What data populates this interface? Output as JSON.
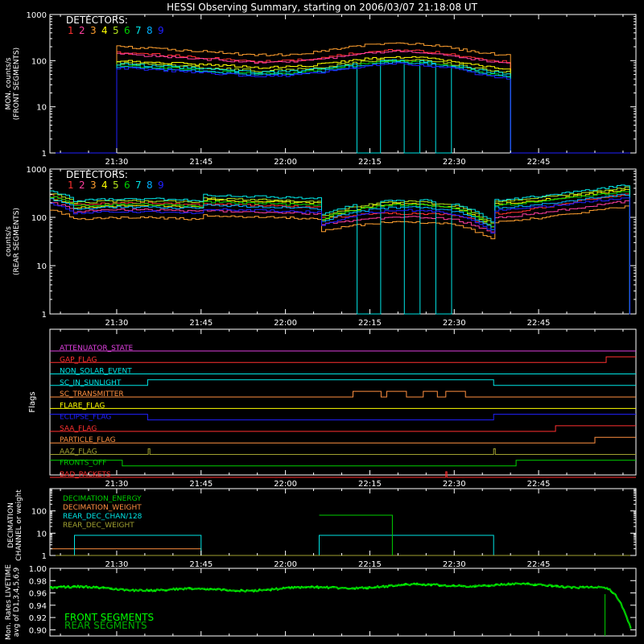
{
  "page_title": "HESSI Observing Summary, starting on 2006/03/07 21:18:08 UT",
  "x_ticks": [
    "21:30",
    "21:45",
    "22:00",
    "22:15",
    "22:30",
    "22:45"
  ],
  "x_tick_minutes": [
    30,
    45,
    60,
    75,
    90,
    105
  ],
  "x_range_minutes": [
    18.13,
    122.3
  ],
  "detector_colors": [
    "#ff3030",
    "#ff3f9f",
    "#ff9f2f",
    "#ffff00",
    "#b5e61d",
    "#00d000",
    "#00e5e5",
    "#00b0ff",
    "#2020ff"
  ],
  "chart_data": [
    {
      "type": "line",
      "panel": "front",
      "ylabel": [
        "MON. counts/s",
        "(FRONT SEGMENTS)"
      ],
      "yscale": "log",
      "ylim": [
        1,
        1000
      ],
      "y_ticks": [
        "1",
        "10",
        "100",
        "1000"
      ],
      "legend_title": "DETECTORS:",
      "legend_numbers": [
        "1",
        "2",
        "3",
        "4",
        "5",
        "6",
        "7",
        "8",
        "9"
      ],
      "data_start_minute": 30,
      "data_end_minute": 100,
      "series": [
        {
          "name": "1",
          "start": 150,
          "mid": 95,
          "peak": 170
        },
        {
          "name": "2",
          "start": 140,
          "mid": 90,
          "peak": 160
        },
        {
          "name": "3",
          "start": 200,
          "mid": 130,
          "peak": 240
        },
        {
          "name": "4",
          "start": 100,
          "mid": 70,
          "peak": 120
        },
        {
          "name": "5",
          "start": 90,
          "mid": 60,
          "peak": 105
        },
        {
          "name": "6",
          "start": 80,
          "mid": 50,
          "peak": 95
        },
        {
          "name": "7",
          "start": 85,
          "mid": 55,
          "peak": 100
        },
        {
          "name": "8",
          "start": 75,
          "mid": 48,
          "peak": 90
        },
        {
          "name": "9",
          "start": 70,
          "mid": 45,
          "peak": 85
        }
      ],
      "dropout_detector": "7",
      "dropouts": [
        [
          72.5,
          76.5
        ],
        [
          81.0,
          83.5
        ],
        [
          86.5,
          89.0
        ]
      ]
    },
    {
      "type": "line",
      "panel": "rear",
      "ylabel": [
        "counts/s",
        "(REAR SEGMENTS)"
      ],
      "yscale": "log",
      "ylim": [
        1,
        1000
      ],
      "y_ticks": [
        "1",
        "10",
        "100",
        "1000"
      ],
      "legend_title": "DETECTORS:",
      "legend_numbers": [
        "1",
        "2",
        "3",
        "4",
        "5",
        "6",
        "7",
        "8",
        "9"
      ],
      "levels": [
        {
          "name": "1",
          "a": 180,
          "b": 190,
          "c": 95,
          "d": 120,
          "e": 310
        },
        {
          "name": "2",
          "a": 130,
          "b": 140,
          "c": 70,
          "d": 100,
          "e": 220
        },
        {
          "name": "3",
          "a": 90,
          "b": 110,
          "c": 50,
          "d": 80,
          "e": 170
        },
        {
          "name": "4",
          "a": 160,
          "b": 230,
          "c": 85,
          "d": 190,
          "e": 380
        },
        {
          "name": "5",
          "a": 200,
          "b": 250,
          "c": 100,
          "d": 210,
          "e": 420
        },
        {
          "name": "6",
          "a": 170,
          "b": 210,
          "c": 90,
          "d": 180,
          "e": 350
        },
        {
          "name": "7",
          "a": 220,
          "b": 290,
          "c": 110,
          "d": 230,
          "e": 470
        },
        {
          "name": "8",
          "a": 150,
          "b": 180,
          "c": 80,
          "d": 160,
          "e": 300
        },
        {
          "name": "9",
          "a": 120,
          "b": 150,
          "c": 65,
          "d": 140,
          "e": 260
        }
      ],
      "dropout_detector": "7",
      "dropouts": [
        [
          72.5,
          76.5
        ],
        [
          81.0,
          83.5
        ],
        [
          86.5,
          89.0
        ]
      ]
    },
    {
      "type": "table",
      "panel": "flags",
      "ylabel": "Flags",
      "flags": [
        {
          "label": "ATTENUATOR_STATE",
          "color": "#e040e0",
          "on": []
        },
        {
          "label": "GAP_FLAG",
          "color": "#ff3030",
          "on": [
            [
              117,
              122.3
            ]
          ]
        },
        {
          "label": "NON_SOLAR_EVENT",
          "color": "#00e5e5",
          "on": []
        },
        {
          "label": "SC_IN_SUNLIGHT",
          "color": "#00e5e5",
          "on": [
            [
              35.5,
              97
            ]
          ]
        },
        {
          "label": "SC_TRANSMITTER",
          "color": "#ff9040",
          "on": [
            [
              72,
              77
            ],
            [
              78,
              81.5
            ],
            [
              84.5,
              87
            ],
            [
              88.5,
              92
            ]
          ]
        },
        {
          "label": "FLARE_FLAG",
          "color": "#ffff00",
          "on": []
        },
        {
          "label": "ECLIPSE_FLAG",
          "color": "#2020ff",
          "on": [
            [
              18.13,
              35.5
            ],
            [
              97,
              122.3
            ]
          ]
        },
        {
          "label": "SAA_FLAG",
          "color": "#ff3030",
          "on": [
            [
              108,
              122.3
            ]
          ]
        },
        {
          "label": "PARTICLE_FLAG",
          "color": "#ff9040",
          "on": [
            [
              115,
              122.3
            ]
          ]
        },
        {
          "label": "AAZ_FLAG",
          "color": "#a0a030",
          "on": [
            [
              35.6,
              35.9
            ],
            [
              97,
              97.3
            ]
          ]
        },
        {
          "label": "FRONTS_OFF",
          "color": "#00d000",
          "on": [
            [
              18.13,
              31
            ],
            [
              101,
              122.3
            ]
          ]
        },
        {
          "label": "BAD_PACKETS",
          "color": "#ff3030",
          "on": [
            [
              88.5,
              88.7
            ]
          ]
        }
      ]
    },
    {
      "type": "line",
      "panel": "decimation",
      "ylabel": [
        "DECIMATION",
        "CHANNEL or weight"
      ],
      "yscale": "log",
      "ylim": [
        1,
        1000
      ],
      "y_ticks": [
        "1",
        "10",
        "100"
      ],
      "series": [
        {
          "name": "DECIMATION_ENERGY",
          "color": "#00d000",
          "points": [
            [
              18.13,
              1
            ],
            [
              122.3,
              1
            ]
          ]
        },
        {
          "name": "DECIMATION_WEIGHT",
          "color": "#ff9040",
          "points": [
            [
              18.13,
              2
            ],
            [
              45,
              2
            ],
            [
              45,
              1
            ],
            [
              122.3,
              1
            ]
          ]
        },
        {
          "name": "REAR_DEC_CHAN/128",
          "color": "#00e5e5",
          "points": [
            [
              18.13,
              1
            ],
            [
              22.5,
              1
            ],
            [
              22.5,
              8
            ],
            [
              45,
              8
            ],
            [
              45,
              1
            ],
            [
              66,
              1
            ],
            [
              66,
              8
            ],
            [
              97,
              8
            ],
            [
              97,
              1
            ],
            [
              122.3,
              1
            ]
          ]
        },
        {
          "name": "REAR_DEC_WEIGHT",
          "color": "#a0a030",
          "points": [
            [
              18.13,
              1
            ],
            [
              122.3,
              1
            ]
          ]
        }
      ],
      "spike": {
        "color": "#00d000",
        "x": [
          66,
          79
        ],
        "y": 64
      }
    },
    {
      "type": "line",
      "panel": "livetime",
      "ylabel": [
        "Mon. Rates LIVETIME",
        "avg of D1,3,4,5,6,9"
      ],
      "ylim": [
        0.89,
        1.0
      ],
      "y_ticks": [
        "0.90",
        "0.92",
        "0.94",
        "0.96",
        "0.98",
        "1.00"
      ],
      "series": [
        {
          "name": "FRONT SEGMENTS",
          "color": "#00ff00"
        },
        {
          "name": "REAR SEGMENTS",
          "color": "#00b000"
        }
      ]
    }
  ]
}
